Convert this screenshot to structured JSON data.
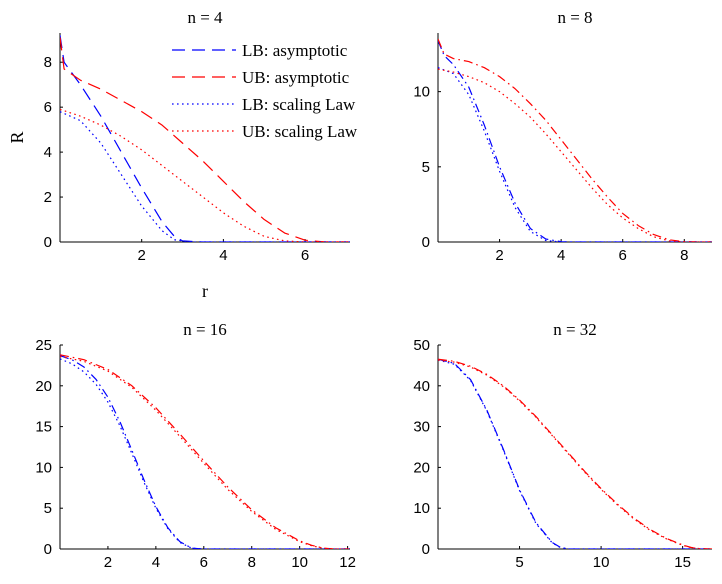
{
  "chart_data": [
    {
      "type": "line",
      "title": "n = 4",
      "xlabel": "r",
      "ylabel": "R",
      "xlim": [
        0,
        7.1
      ],
      "ylim": [
        0,
        9.3
      ],
      "xticks": [
        2,
        4,
        6
      ],
      "yticks": [
        0,
        2,
        4,
        6,
        8
      ],
      "legend": {
        "placement": "top-right",
        "entries": [
          "LB: asymptotic",
          "UB: asymptotic",
          "LB: scaling Law",
          "UB: scaling Law"
        ]
      },
      "series": [
        {
          "name": "LB: asymptotic",
          "color": "#0000ff",
          "dash": "dashed",
          "x": [
            0,
            0.1,
            0.5,
            1,
            1.5,
            2,
            2.5,
            2.8,
            3,
            3.5,
            7.1
          ],
          "y": [
            9.2,
            8.0,
            7.0,
            5.6,
            4.0,
            2.4,
            0.9,
            0.25,
            0.05,
            0,
            0
          ]
        },
        {
          "name": "UB: asymptotic",
          "color": "#ff0000",
          "dash": "dashed",
          "x": [
            0,
            0.1,
            0.5,
            1,
            1.5,
            2,
            2.5,
            3,
            3.5,
            4,
            4.5,
            5,
            5.5,
            6,
            6.5,
            7.1
          ],
          "y": [
            9.1,
            7.7,
            7.2,
            6.8,
            6.3,
            5.8,
            5.2,
            4.4,
            3.6,
            2.7,
            1.8,
            1.0,
            0.4,
            0.08,
            0,
            0
          ]
        },
        {
          "name": "LB: scaling Law",
          "color": "#0000ff",
          "dash": "dotted",
          "x": [
            0,
            0.5,
            1,
            1.5,
            2,
            2.5,
            2.8,
            3.2,
            7.1
          ],
          "y": [
            5.8,
            5.4,
            4.4,
            3.0,
            1.6,
            0.5,
            0.1,
            0,
            0
          ]
        },
        {
          "name": "UB: scaling Law",
          "color": "#ff0000",
          "dash": "dotted",
          "x": [
            0,
            0.5,
            1,
            1.5,
            2,
            2.5,
            3,
            3.5,
            4,
            4.5,
            5,
            5.5,
            6,
            7.1
          ],
          "y": [
            5.9,
            5.6,
            5.2,
            4.7,
            4.1,
            3.4,
            2.7,
            2.0,
            1.3,
            0.7,
            0.25,
            0.05,
            0,
            0
          ]
        }
      ]
    },
    {
      "type": "line",
      "title": "n = 8",
      "xlim": [
        0,
        8.9
      ],
      "ylim": [
        0,
        13.9
      ],
      "xticks": [
        2,
        4,
        6,
        8
      ],
      "yticks": [
        0,
        5,
        10
      ],
      "series": [
        {
          "name": "LB: asymptotic",
          "color": "#0000ff",
          "dash": "dashdot",
          "x": [
            0,
            0.2,
            0.5,
            1,
            1.5,
            2,
            2.5,
            3,
            3.5,
            4,
            4.3,
            8.9
          ],
          "y": [
            13.4,
            12.4,
            11.8,
            10.3,
            7.8,
            5.0,
            2.6,
            0.9,
            0.2,
            0.02,
            0,
            0
          ]
        },
        {
          "name": "UB: asymptotic",
          "color": "#ff0000",
          "dash": "dashdot",
          "x": [
            0,
            0.2,
            0.5,
            1,
            1.5,
            2,
            2.5,
            3,
            3.5,
            4,
            4.5,
            5,
            5.5,
            6,
            6.5,
            7,
            7.5,
            8,
            8.5,
            8.9
          ],
          "y": [
            13.5,
            12.5,
            12.2,
            12.0,
            11.6,
            11.0,
            10.2,
            9.2,
            8.1,
            6.8,
            5.5,
            4.2,
            3.0,
            1.9,
            1.1,
            0.5,
            0.15,
            0.02,
            0,
            0
          ]
        },
        {
          "name": "LB: scaling Law",
          "color": "#0000ff",
          "dash": "dotted",
          "x": [
            0,
            0.5,
            1,
            1.5,
            2,
            2.5,
            3,
            3.5,
            4,
            8.9
          ],
          "y": [
            11.6,
            11.2,
            9.8,
            7.4,
            4.7,
            2.3,
            0.7,
            0.1,
            0,
            0
          ]
        },
        {
          "name": "UB: scaling Law",
          "color": "#ff0000",
          "dash": "dotted",
          "x": [
            0,
            0.5,
            1,
            1.5,
            2,
            2.5,
            3,
            3.5,
            4,
            4.5,
            5,
            5.5,
            6,
            6.5,
            7,
            7.5,
            8,
            8.9
          ],
          "y": [
            11.5,
            11.3,
            11.0,
            10.6,
            10.0,
            9.2,
            8.3,
            7.2,
            6.0,
            4.8,
            3.6,
            2.5,
            1.6,
            0.9,
            0.35,
            0.08,
            0,
            0
          ]
        }
      ]
    },
    {
      "type": "line",
      "title": "n = 16",
      "xlim": [
        0,
        12.1
      ],
      "ylim": [
        0,
        25
      ],
      "xticks": [
        2,
        4,
        6,
        8,
        10,
        12
      ],
      "yticks": [
        0,
        5,
        10,
        15,
        20,
        25
      ],
      "series": [
        {
          "name": "LB: asymptotic",
          "color": "#0000ff",
          "dash": "dashdot",
          "x": [
            0,
            0.5,
            1,
            1.5,
            2,
            2.5,
            3,
            3.5,
            4,
            4.5,
            5,
            5.5,
            6,
            12.1
          ],
          "y": [
            23.7,
            23.2,
            22.3,
            20.8,
            18.6,
            15.6,
            12.1,
            8.5,
            5.2,
            2.6,
            0.9,
            0.1,
            0,
            0
          ]
        },
        {
          "name": "UB: asymptotic",
          "color": "#ff0000",
          "dash": "dashdot",
          "x": [
            0,
            1,
            2,
            3,
            4,
            5,
            6,
            7,
            8,
            9,
            10,
            10.5,
            11,
            11.5,
            12.1
          ],
          "y": [
            23.8,
            23.2,
            22.0,
            20.0,
            17.3,
            14.1,
            10.8,
            7.6,
            4.8,
            2.6,
            1.0,
            0.45,
            0.1,
            0,
            0
          ]
        },
        {
          "name": "LB: scaling Law",
          "color": "#0000ff",
          "dash": "dotted",
          "x": [
            0,
            0.5,
            1,
            1.5,
            2,
            2.5,
            3,
            3.5,
            4,
            4.5,
            5,
            5.5,
            6,
            12.1
          ],
          "y": [
            23.3,
            22.7,
            21.7,
            20.2,
            18.0,
            15.1,
            11.7,
            8.2,
            5.0,
            2.5,
            0.8,
            0.1,
            0,
            0
          ]
        },
        {
          "name": "UB: scaling Law",
          "color": "#ff0000",
          "dash": "dotted",
          "x": [
            0,
            1,
            2,
            3,
            4,
            5,
            6,
            7,
            8,
            9,
            10,
            10.5,
            11,
            11.5,
            12.1
          ],
          "y": [
            23.6,
            23.0,
            21.8,
            19.8,
            17.0,
            13.8,
            10.5,
            7.3,
            4.6,
            2.4,
            0.9,
            0.4,
            0.08,
            0,
            0
          ]
        }
      ]
    },
    {
      "type": "line",
      "title": "n = 32",
      "xlim": [
        0,
        16.8
      ],
      "ylim": [
        0,
        50
      ],
      "xticks": [
        5,
        10,
        15
      ],
      "yticks": [
        0,
        10,
        20,
        30,
        40,
        50
      ],
      "series": [
        {
          "name": "LB: asymptotic",
          "color": "#0000ff",
          "dash": "dashdot",
          "x": [
            0,
            1,
            2,
            3,
            4,
            5,
            6,
            7,
            7.5,
            8,
            16.8
          ],
          "y": [
            46.5,
            45.5,
            41.5,
            34.0,
            24.5,
            14.5,
            6.5,
            1.6,
            0.4,
            0,
            0
          ]
        },
        {
          "name": "UB: asymptotic",
          "color": "#ff0000",
          "dash": "dashdot",
          "x": [
            0,
            1,
            2,
            3,
            4,
            5,
            6,
            7,
            8,
            9,
            10,
            11,
            12,
            13,
            14,
            15,
            15.5,
            16,
            16.8
          ],
          "y": [
            46.5,
            46.0,
            44.8,
            42.8,
            40.0,
            36.5,
            32.5,
            28.0,
            23.5,
            19.0,
            14.8,
            11.0,
            7.6,
            4.8,
            2.6,
            1.0,
            0.4,
            0.1,
            0
          ]
        },
        {
          "name": "LB: scaling Law",
          "color": "#0000ff",
          "dash": "dotted",
          "x": [
            0,
            1,
            2,
            3,
            4,
            5,
            6,
            7,
            7.5,
            8,
            16.8
          ],
          "y": [
            46.3,
            45.3,
            41.3,
            33.8,
            24.3,
            14.3,
            6.3,
            1.5,
            0.35,
            0,
            0
          ]
        },
        {
          "name": "UB: scaling Law",
          "color": "#ff0000",
          "dash": "dotted",
          "x": [
            0,
            1,
            2,
            3,
            4,
            5,
            6,
            7,
            8,
            9,
            10,
            11,
            12,
            13,
            14,
            15,
            15.5,
            16,
            16.8
          ],
          "y": [
            46.3,
            45.8,
            44.6,
            42.6,
            39.8,
            36.3,
            32.3,
            27.8,
            23.3,
            18.8,
            14.6,
            10.8,
            7.4,
            4.6,
            2.5,
            0.9,
            0.35,
            0.08,
            0
          ]
        }
      ]
    }
  ]
}
